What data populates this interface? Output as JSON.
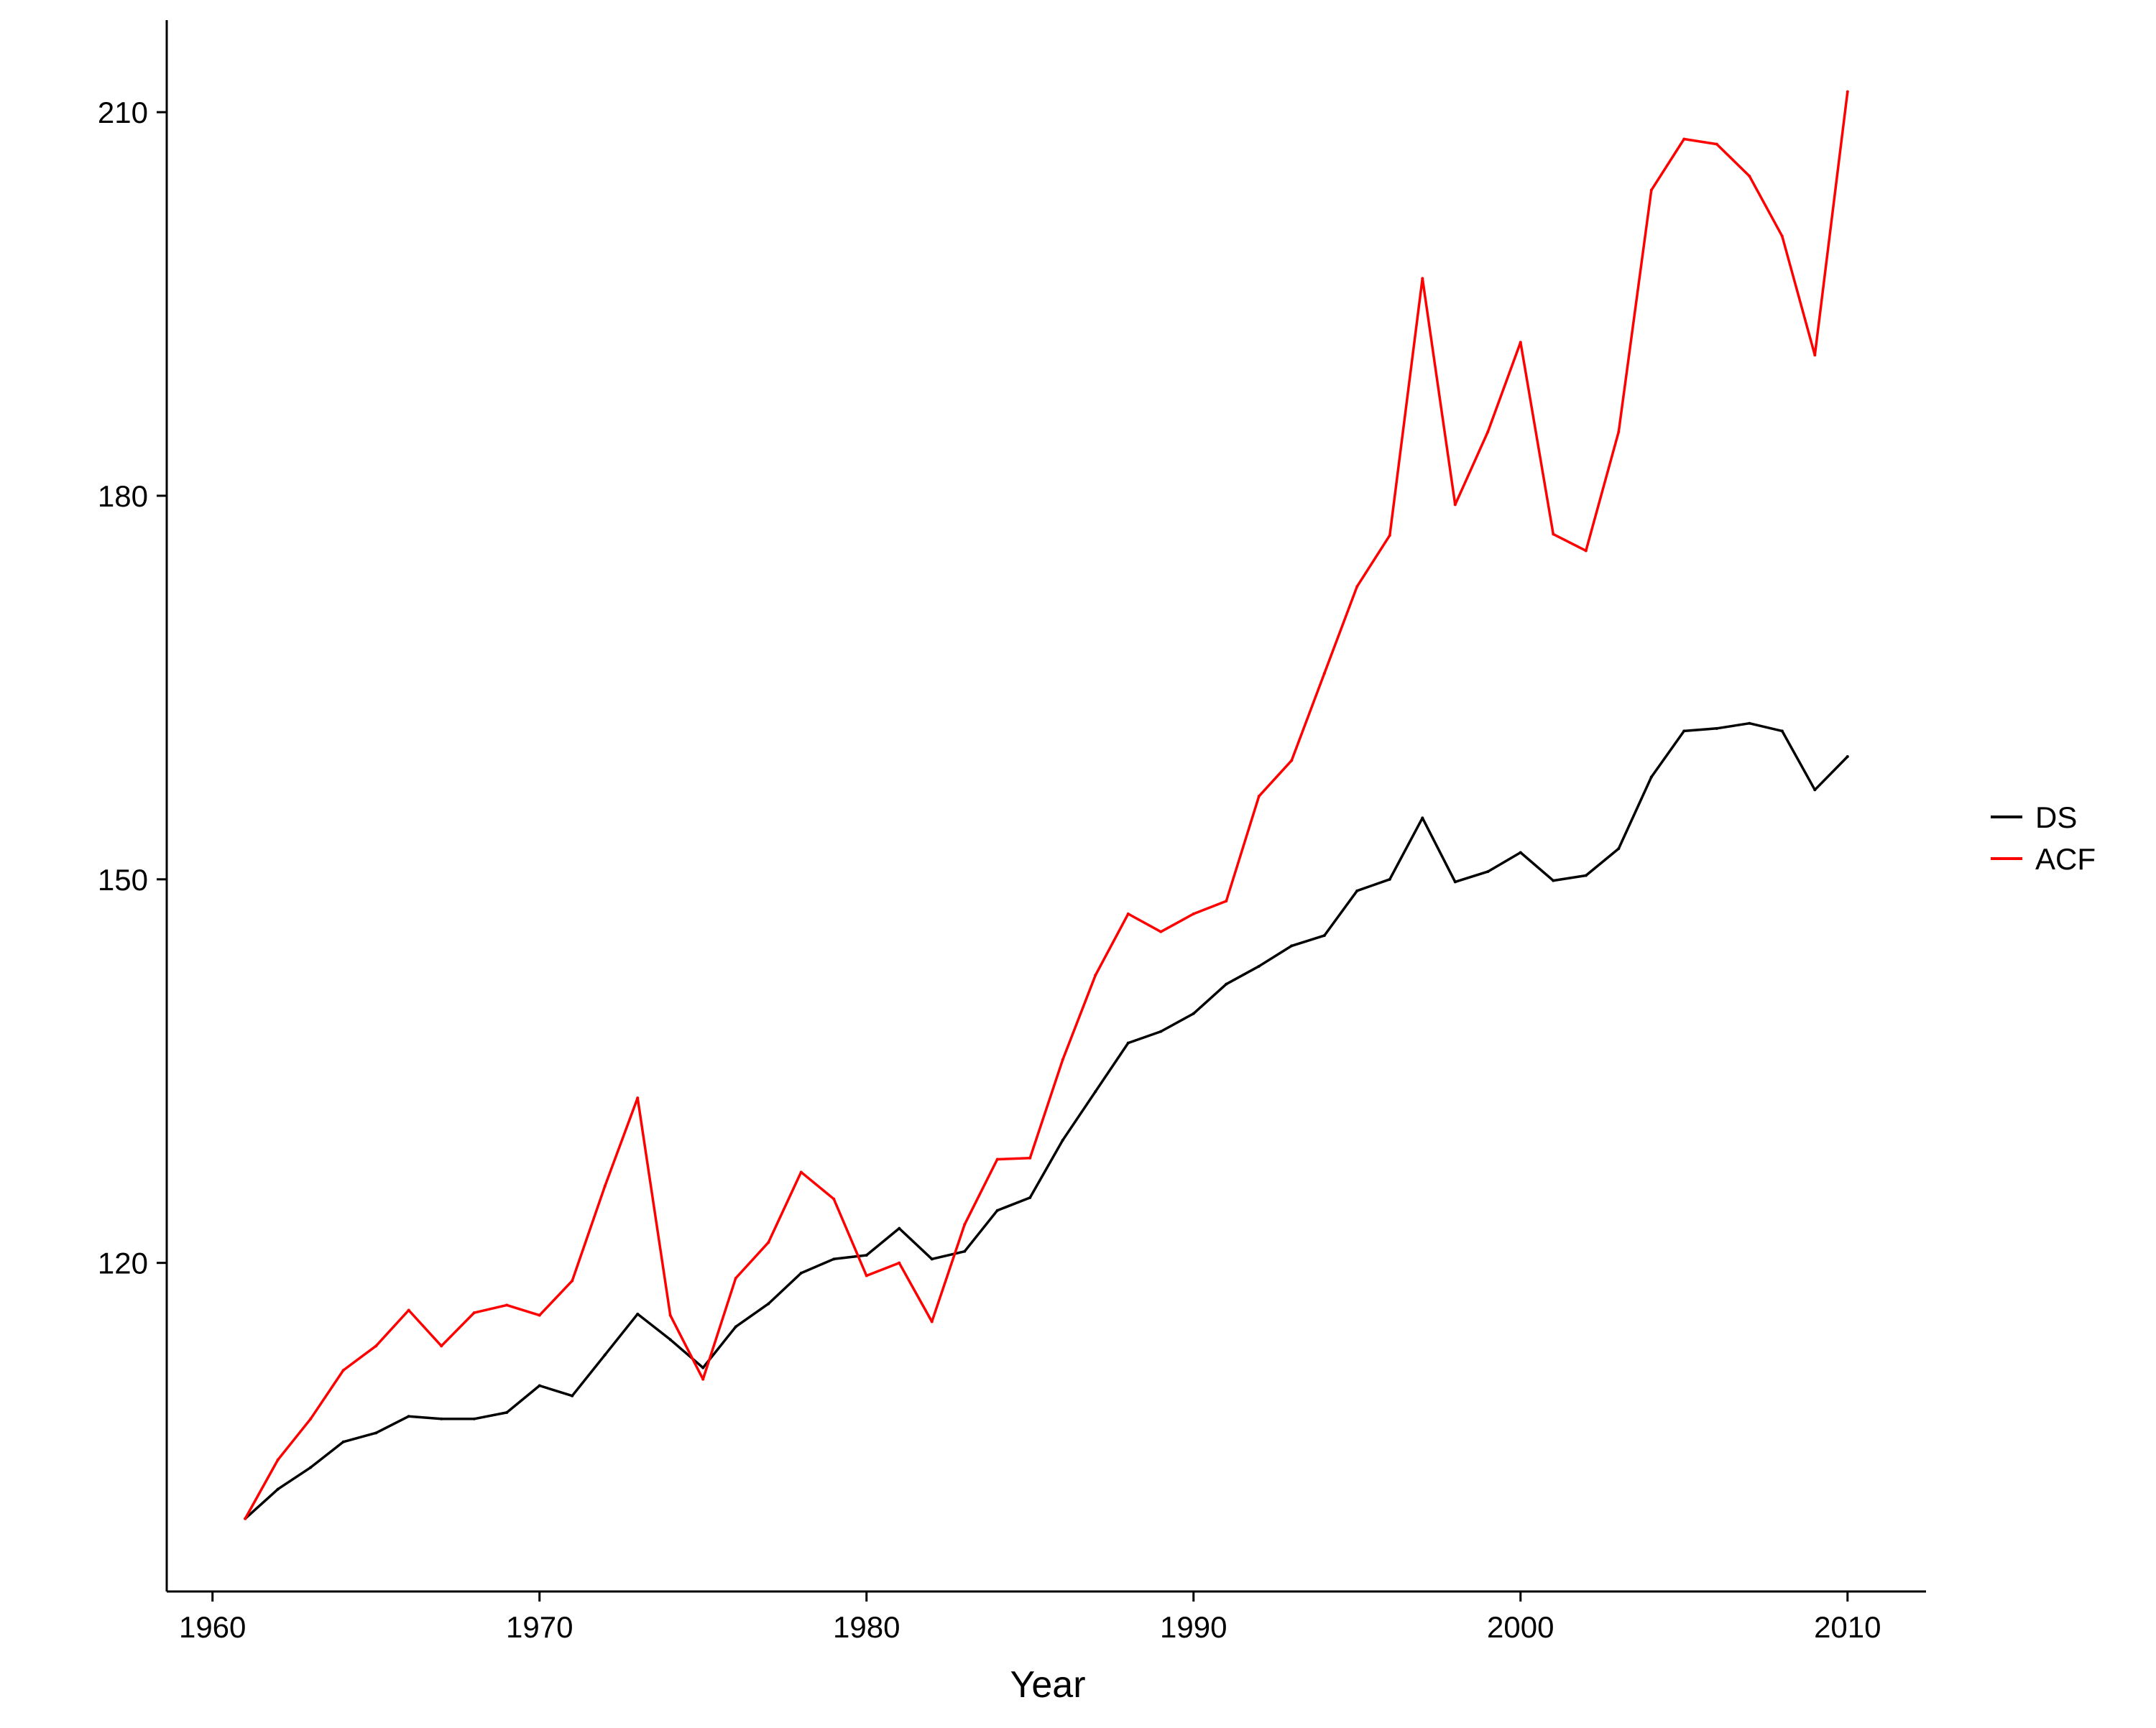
{
  "chart_data": {
    "type": "line",
    "title": "",
    "xlabel": "Year",
    "ylabel": "",
    "xlim": [
      1958.6,
      2012.4
    ],
    "ylim": [
      94.3,
      217.2
    ],
    "xticks": [
      1960,
      1970,
      1980,
      1990,
      2000,
      2010
    ],
    "yticks": [
      120,
      150,
      180,
      210
    ],
    "grid": false,
    "legend_position": "right",
    "x": [
      1961,
      1962,
      1963,
      1964,
      1965,
      1966,
      1967,
      1968,
      1969,
      1970,
      1971,
      1972,
      1973,
      1974,
      1975,
      1976,
      1977,
      1978,
      1979,
      1980,
      1981,
      1982,
      1983,
      1984,
      1985,
      1986,
      1987,
      1988,
      1989,
      1990,
      1991,
      1992,
      1993,
      1994,
      1995,
      1996,
      1997,
      1998,
      1999,
      2000,
      2001,
      2002,
      2003,
      2004,
      2005,
      2006,
      2007,
      2008,
      2009,
      2010
    ],
    "series": [
      {
        "name": "DS",
        "color": "#000000",
        "values": [
          100.0,
          102.3,
          104.0,
          106.0,
          106.7,
          108.0,
          107.8,
          107.8,
          108.3,
          110.4,
          109.6,
          112.8,
          116.0,
          114.0,
          111.8,
          115.0,
          116.8,
          119.2,
          120.3,
          120.6,
          122.7,
          120.3,
          120.9,
          124.1,
          125.1,
          129.6,
          133.4,
          137.2,
          138.1,
          139.5,
          141.8,
          143.2,
          144.8,
          145.6,
          149.1,
          150.0,
          154.8,
          149.8,
          150.6,
          152.1,
          149.9,
          150.3,
          152.4,
          158.0,
          161.6,
          161.8,
          162.2,
          161.6,
          157.0,
          159.6
        ]
      },
      {
        "name": "ACF",
        "color": "#ff0000",
        "values": [
          100.0,
          104.6,
          107.8,
          111.6,
          113.5,
          116.3,
          113.5,
          116.1,
          116.7,
          115.9,
          118.6,
          126.0,
          132.9,
          115.9,
          110.9,
          118.8,
          121.6,
          127.1,
          125.0,
          119.0,
          120.0,
          115.4,
          123.0,
          128.1,
          128.2,
          135.9,
          142.5,
          147.3,
          145.9,
          147.3,
          148.3,
          156.5,
          159.3,
          166.1,
          172.9,
          176.9,
          197.0,
          179.3,
          185.0,
          192.0,
          177.0,
          175.7,
          185.0,
          203.9,
          207.9,
          207.5,
          205.0,
          200.3,
          191.0,
          211.6
        ]
      }
    ]
  }
}
